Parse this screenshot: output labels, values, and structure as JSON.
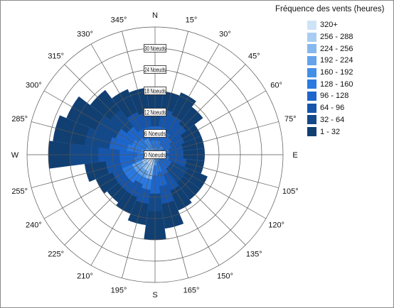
{
  "chart_data": {
    "type": "wind-rose",
    "title": "Fréquence des vents (heures)",
    "unit": "Noeuds",
    "direction_labels": [
      "N",
      "15°",
      "30°",
      "45°",
      "60°",
      "75°",
      "E",
      "105°",
      "120°",
      "135°",
      "150°",
      "165°",
      "S",
      "195°",
      "210°",
      "225°",
      "240°",
      "255°",
      "W",
      "285°",
      "300°",
      "315°",
      "330°",
      "345°"
    ],
    "directions_deg": [
      0,
      15,
      30,
      45,
      60,
      75,
      90,
      105,
      120,
      135,
      150,
      165,
      180,
      195,
      210,
      225,
      240,
      255,
      270,
      285,
      300,
      315,
      330,
      345
    ],
    "radial_ticks": [
      0,
      6,
      12,
      18,
      24,
      30
    ],
    "radial_max": 36,
    "legend": [
      {
        "label": "320+",
        "color": "#cfe3f7"
      },
      {
        "label": "256 - 288",
        "color": "#a9cdf2"
      },
      {
        "label": "224 - 256",
        "color": "#85b8ef"
      },
      {
        "label": "192 - 224",
        "color": "#62a3ec"
      },
      {
        "label": "160 - 192",
        "color": "#428fe8"
      },
      {
        "label": "128 - 160",
        "color": "#2b7ae0"
      },
      {
        "label": "96 - 128",
        "color": "#1d66cc"
      },
      {
        "label": "64 - 96",
        "color": "#1655aa"
      },
      {
        "label": "32 - 64",
        "color": "#134989"
      },
      {
        "label": "1 - 32",
        "color": "#113f72"
      }
    ],
    "petals": [
      {
        "dir": 0,
        "segments": [
          {
            "r": 18,
            "bin": "1 - 32"
          },
          {
            "r": 12,
            "bin": "32 - 64"
          },
          {
            "r": 8,
            "bin": "96 - 128"
          },
          {
            "r": 4,
            "bin": "128 - 160"
          },
          {
            "r": 2,
            "bin": "160 - 192"
          }
        ]
      },
      {
        "dir": 15,
        "segments": [
          {
            "r": 18,
            "bin": "1 - 32"
          },
          {
            "r": 13,
            "bin": "64 - 96"
          },
          {
            "r": 8,
            "bin": "96 - 128"
          },
          {
            "r": 4,
            "bin": "128 - 160"
          },
          {
            "r": 2,
            "bin": "160 - 192"
          }
        ]
      },
      {
        "dir": 30,
        "segments": [
          {
            "r": 19,
            "bin": "1 - 32"
          },
          {
            "r": 12,
            "bin": "64 - 96"
          },
          {
            "r": 7,
            "bin": "96 - 128"
          },
          {
            "r": 3,
            "bin": "128 - 160"
          }
        ]
      },
      {
        "dir": 45,
        "segments": [
          {
            "r": 17,
            "bin": "1 - 32"
          },
          {
            "r": 11,
            "bin": "64 - 96"
          },
          {
            "r": 6,
            "bin": "96 - 128"
          },
          {
            "r": 3,
            "bin": "160 - 192"
          }
        ]
      },
      {
        "dir": 60,
        "segments": [
          {
            "r": 14,
            "bin": "1 - 32"
          },
          {
            "r": 9,
            "bin": "64 - 96"
          },
          {
            "r": 5,
            "bin": "96 - 128"
          },
          {
            "r": 2,
            "bin": "160 - 192"
          }
        ]
      },
      {
        "dir": 75,
        "segments": [
          {
            "r": 14,
            "bin": "1 - 32"
          },
          {
            "r": 8,
            "bin": "64 - 96"
          },
          {
            "r": 4,
            "bin": "128 - 160"
          }
        ]
      },
      {
        "dir": 90,
        "segments": [
          {
            "r": 14,
            "bin": "1 - 32"
          },
          {
            "r": 8,
            "bin": "64 - 96"
          },
          {
            "r": 3,
            "bin": "128 - 160"
          }
        ]
      },
      {
        "dir": 105,
        "segments": [
          {
            "r": 14,
            "bin": "1 - 32"
          },
          {
            "r": 9,
            "bin": "64 - 96"
          },
          {
            "r": 4,
            "bin": "128 - 160"
          }
        ]
      },
      {
        "dir": 120,
        "segments": [
          {
            "r": 16,
            "bin": "1 - 32"
          },
          {
            "r": 10,
            "bin": "32 - 64"
          },
          {
            "r": 5,
            "bin": "96 - 128"
          },
          {
            "r": 2,
            "bin": "160 - 192"
          }
        ]
      },
      {
        "dir": 135,
        "segments": [
          {
            "r": 16,
            "bin": "1 - 32"
          },
          {
            "r": 10,
            "bin": "32 - 64"
          },
          {
            "r": 5,
            "bin": "96 - 128"
          }
        ]
      },
      {
        "dir": 150,
        "segments": [
          {
            "r": 17,
            "bin": "1 - 32"
          },
          {
            "r": 11,
            "bin": "64 - 96"
          },
          {
            "r": 6,
            "bin": "96 - 128"
          },
          {
            "r": 2,
            "bin": "160 - 192"
          }
        ]
      },
      {
        "dir": 165,
        "segments": [
          {
            "r": 21,
            "bin": "1 - 32"
          },
          {
            "r": 14,
            "bin": "64 - 96"
          },
          {
            "r": 9,
            "bin": "96 - 128"
          },
          {
            "r": 5,
            "bin": "128 - 160"
          },
          {
            "r": 2,
            "bin": "160 - 192"
          }
        ]
      },
      {
        "dir": 180,
        "segments": [
          {
            "r": 24,
            "bin": "1 - 32"
          },
          {
            "r": 16,
            "bin": "32 - 64"
          },
          {
            "r": 11,
            "bin": "96 - 128"
          },
          {
            "r": 6,
            "bin": "128 - 160"
          },
          {
            "r": 3,
            "bin": "192 - 224"
          }
        ]
      },
      {
        "dir": 195,
        "segments": [
          {
            "r": 20,
            "bin": "1 - 32"
          },
          {
            "r": 14,
            "bin": "64 - 96"
          },
          {
            "r": 10,
            "bin": "128 - 160"
          },
          {
            "r": 7,
            "bin": "224 - 256"
          },
          {
            "r": 4,
            "bin": "256 - 288"
          }
        ]
      },
      {
        "dir": 210,
        "segments": [
          {
            "r": 18,
            "bin": "1 - 32"
          },
          {
            "r": 13,
            "bin": "64 - 96"
          },
          {
            "r": 9,
            "bin": "128 - 160"
          },
          {
            "r": 7,
            "bin": "192 - 224"
          },
          {
            "r": 5,
            "bin": "256 - 288"
          },
          {
            "r": 3,
            "bin": "320+"
          }
        ]
      },
      {
        "dir": 225,
        "segments": [
          {
            "r": 17,
            "bin": "1 - 32"
          },
          {
            "r": 13,
            "bin": "64 - 96"
          },
          {
            "r": 10,
            "bin": "128 - 160"
          },
          {
            "r": 7,
            "bin": "192 - 224"
          },
          {
            "r": 5,
            "bin": "224 - 256"
          },
          {
            "r": 3,
            "bin": "320+"
          }
        ]
      },
      {
        "dir": 240,
        "segments": [
          {
            "r": 18,
            "bin": "1 - 32"
          },
          {
            "r": 13,
            "bin": "64 - 96"
          },
          {
            "r": 10,
            "bin": "128 - 160"
          },
          {
            "r": 7,
            "bin": "192 - 224"
          },
          {
            "r": 4,
            "bin": "256 - 288"
          }
        ]
      },
      {
        "dir": 255,
        "segments": [
          {
            "r": 20,
            "bin": "1 - 32"
          },
          {
            "r": 14,
            "bin": "64 - 96"
          },
          {
            "r": 10,
            "bin": "96 - 128"
          },
          {
            "r": 6,
            "bin": "128 - 160"
          },
          {
            "r": 3,
            "bin": "160 - 192"
          }
        ]
      },
      {
        "dir": 270,
        "segments": [
          {
            "r": 30,
            "bin": "1 - 32"
          },
          {
            "r": 24,
            "bin": "32 - 64"
          },
          {
            "r": 16,
            "bin": "64 - 96"
          },
          {
            "r": 10,
            "bin": "96 - 128"
          },
          {
            "r": 5,
            "bin": "128 - 160"
          },
          {
            "r": 2,
            "bin": "160 - 192"
          }
        ]
      },
      {
        "dir": 285,
        "segments": [
          {
            "r": 29,
            "bin": "1 - 32"
          },
          {
            "r": 20,
            "bin": "32 - 64"
          },
          {
            "r": 13,
            "bin": "96 - 128"
          },
          {
            "r": 8,
            "bin": "128 - 160"
          },
          {
            "r": 4,
            "bin": "160 - 192"
          }
        ]
      },
      {
        "dir": 300,
        "segments": [
          {
            "r": 27,
            "bin": "1 - 32"
          },
          {
            "r": 18,
            "bin": "32 - 64"
          },
          {
            "r": 12,
            "bin": "96 - 128"
          },
          {
            "r": 7,
            "bin": "128 - 160"
          },
          {
            "r": 3,
            "bin": "192 - 224"
          }
        ]
      },
      {
        "dir": 315,
        "segments": [
          {
            "r": 23,
            "bin": "1 - 32"
          },
          {
            "r": 16,
            "bin": "32 - 64"
          },
          {
            "r": 10,
            "bin": "96 - 128"
          },
          {
            "r": 6,
            "bin": "128 - 160"
          },
          {
            "r": 3,
            "bin": "160 - 192"
          }
        ]
      },
      {
        "dir": 330,
        "segments": [
          {
            "r": 20,
            "bin": "1 - 32"
          },
          {
            "r": 13,
            "bin": "64 - 96"
          },
          {
            "r": 8,
            "bin": "96 - 128"
          },
          {
            "r": 5,
            "bin": "160 - 192"
          },
          {
            "r": 2,
            "bin": "192 - 224"
          }
        ]
      },
      {
        "dir": 345,
        "segments": [
          {
            "r": 19,
            "bin": "1 - 32"
          },
          {
            "r": 12,
            "bin": "64 - 96"
          },
          {
            "r": 8,
            "bin": "96 - 128"
          },
          {
            "r": 4,
            "bin": "128 - 160"
          },
          {
            "r": 2,
            "bin": "160 - 192"
          }
        ]
      }
    ]
  }
}
